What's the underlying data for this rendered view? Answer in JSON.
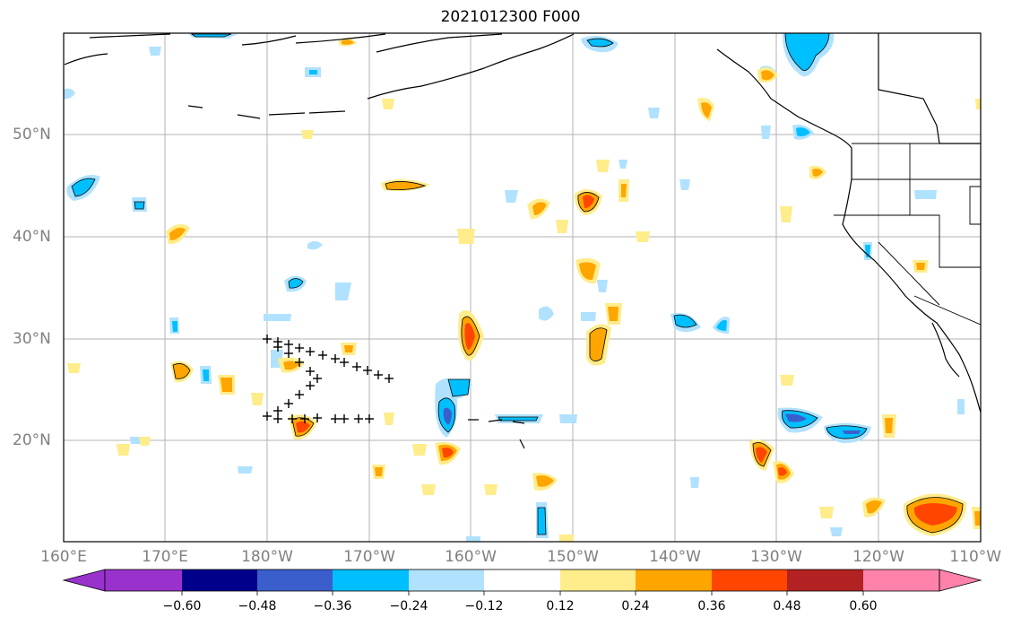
{
  "title": "2021012300 F000",
  "lat_labels": [
    "50°N",
    "40°N",
    "30°N",
    "20°N"
  ],
  "lon_labels": [
    "160°E",
    "170°E",
    "180°W",
    "170°W",
    "160°W",
    "150°W",
    "140°W",
    "130°W",
    "120°W",
    "110°W"
  ],
  "colorbar": {
    "ticks": [
      "−0.60",
      "−0.48",
      "−0.36",
      "−0.24",
      "−0.12",
      "0.12",
      "0.24",
      "0.36",
      "0.48",
      "0.60"
    ],
    "colors": [
      "#9932cc",
      "#00008b",
      "#3a5fcd",
      "#00bfff",
      "#b0e2ff",
      "#ffffff",
      "#ffec8b",
      "#ffa500",
      "#ff4500",
      "#b22222",
      "#ff82ab"
    ]
  },
  "legend_marker": "+"
}
